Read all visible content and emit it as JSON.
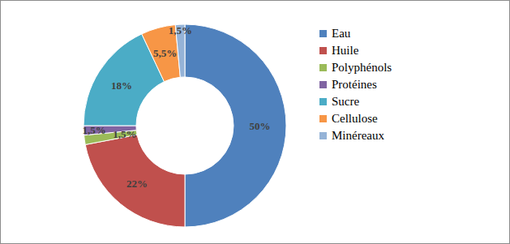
{
  "chart_data": {
    "type": "pie",
    "categories": [
      "Eau",
      "Huile",
      "Polyphénols",
      "Protéines",
      "Sucre",
      "Cellulose",
      "Minéreaux"
    ],
    "values": [
      50,
      22,
      1.5,
      1.5,
      18,
      5.5,
      1.5
    ],
    "value_labels": [
      "50%",
      "22%",
      "1,5%",
      "1,5%",
      "18%",
      "5,5%",
      "1,5%"
    ],
    "colors": [
      "#4F81BD",
      "#C0504D",
      "#9BBB59",
      "#8064A2",
      "#4BACC6",
      "#F79646",
      "#95B3D7"
    ],
    "data_labels": true,
    "legend": "right"
  }
}
